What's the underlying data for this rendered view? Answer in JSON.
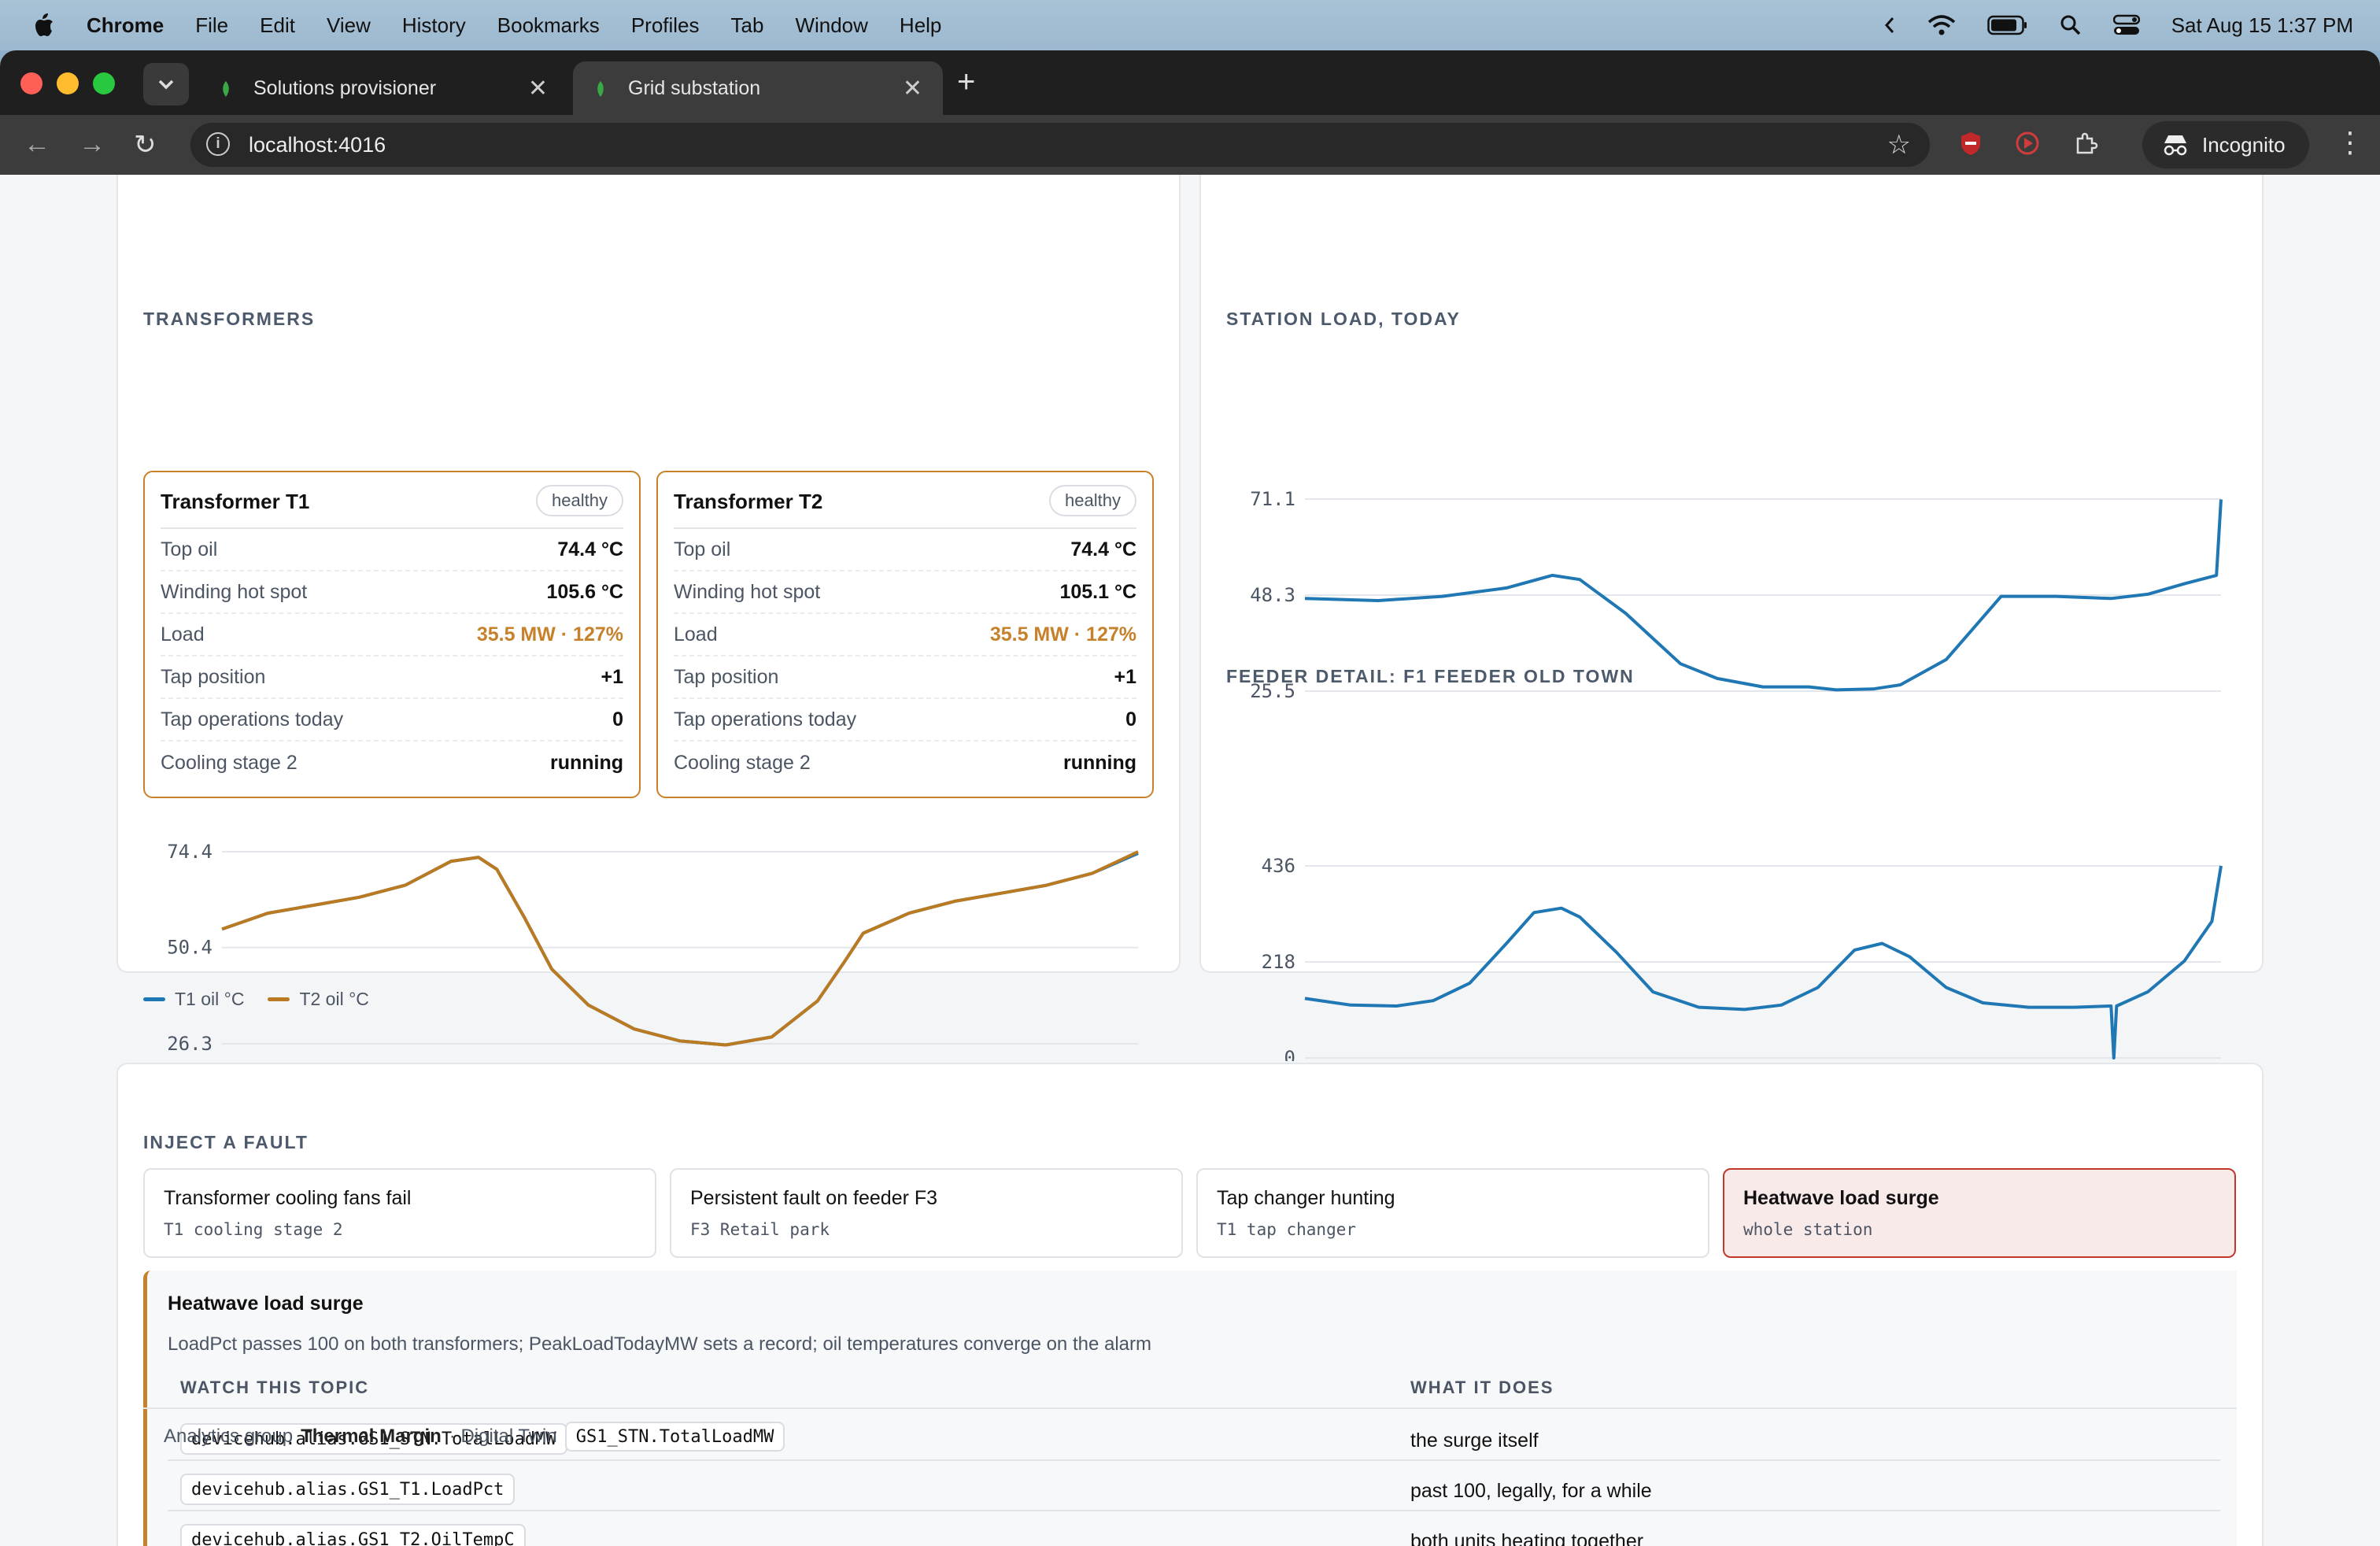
{
  "menubar": {
    "app": "Chrome",
    "items": [
      "File",
      "Edit",
      "View",
      "History",
      "Bookmarks",
      "Profiles",
      "Tab",
      "Window",
      "Help"
    ],
    "clock": "Sat Aug 15  1:37 PM"
  },
  "browser": {
    "tabs": [
      {
        "title": "Solutions provisioner",
        "active": false
      },
      {
        "title": "Grid substation",
        "active": true
      }
    ],
    "url": "localhost:4016",
    "profile": "Incognito"
  },
  "transformers": {
    "title": "TRANSFORMERS",
    "units": [
      {
        "name": "Transformer T1",
        "status": "healthy",
        "rows": [
          {
            "label": "Top oil",
            "value": "74.4 °C"
          },
          {
            "label": "Winding hot spot",
            "value": "105.6 °C"
          },
          {
            "label": "Load",
            "value": "35.5 MW · 127%",
            "warn": true
          },
          {
            "label": "Tap position",
            "value": "+1"
          },
          {
            "label": "Tap operations today",
            "value": "0"
          },
          {
            "label": "Cooling stage 2",
            "value": "running"
          }
        ]
      },
      {
        "name": "Transformer T2",
        "status": "healthy",
        "rows": [
          {
            "label": "Top oil",
            "value": "74.4 °C"
          },
          {
            "label": "Winding hot spot",
            "value": "105.1 °C"
          },
          {
            "label": "Load",
            "value": "35.5 MW · 127%",
            "warn": true
          },
          {
            "label": "Tap position",
            "value": "+1"
          },
          {
            "label": "Tap operations today",
            "value": "0"
          },
          {
            "label": "Cooling stage 2",
            "value": "running"
          }
        ]
      }
    ],
    "legend": [
      "T1 oil °C",
      "T2 oil °C"
    ]
  },
  "chart_data": [
    {
      "type": "line",
      "ylim": [
        26.3,
        74.4
      ],
      "yticks": [
        "74.4",
        "50.4",
        "26.3"
      ],
      "x": [
        0,
        5,
        10,
        15,
        20,
        25,
        28,
        30,
        33,
        36,
        40,
        45,
        50,
        55,
        60,
        65,
        68,
        70,
        75,
        80,
        85,
        90,
        95,
        100
      ],
      "series": [
        {
          "name": "T1 oil °C",
          "color": "#1f77b4",
          "values": [
            55,
            59,
            61,
            63,
            66,
            72,
            73,
            70,
            58,
            45,
            36,
            30,
            27,
            26,
            28,
            37,
            47,
            54,
            59,
            62,
            64,
            66,
            69,
            74
          ]
        },
        {
          "name": "T2 oil °C",
          "color": "#b97a22",
          "values": [
            55,
            59,
            61,
            63,
            66,
            72,
            73,
            70,
            58,
            45,
            36,
            30,
            27,
            26,
            28,
            37,
            47,
            54,
            59,
            62,
            64,
            66,
            69,
            74.4
          ]
        }
      ]
    },
    {
      "type": "line",
      "title": "STATION LOAD, TODAY",
      "ylim": [
        25.5,
        71.1
      ],
      "yticks": [
        "71.1",
        "48.3",
        "25.5"
      ],
      "x": [
        0,
        8,
        15,
        22,
        27,
        30,
        35,
        38,
        41,
        45,
        50,
        55,
        58,
        62,
        65,
        70,
        76,
        82,
        88,
        92,
        96,
        99.5,
        100
      ],
      "series": [
        {
          "name": "Station load",
          "color": "#1f77b4",
          "values": [
            47.5,
            47,
            48,
            50,
            53,
            52,
            44,
            38,
            32,
            28.5,
            26.5,
            26.5,
            25.8,
            26,
            27,
            33,
            48,
            48,
            47.5,
            48.5,
            51,
            53,
            71
          ]
        }
      ]
    },
    {
      "type": "line",
      "title": "FEEDER DETAIL: F1 FEEDER OLD TOWN",
      "ylim": [
        0,
        436
      ],
      "yticks": [
        "436",
        "218",
        "0"
      ],
      "x": [
        0,
        5,
        10,
        14,
        18,
        22,
        25,
        28,
        30,
        34,
        38,
        43,
        48,
        52,
        56,
        60,
        63,
        66,
        70,
        74,
        79,
        84,
        88,
        88.3,
        88.6,
        92,
        96,
        99,
        100
      ],
      "series": [
        {
          "name": "F1 Feeder Old Town",
          "color": "#1f77b4",
          "values": [
            135,
            120,
            118,
            130,
            170,
            260,
            330,
            340,
            320,
            240,
            150,
            115,
            110,
            120,
            160,
            245,
            260,
            230,
            160,
            125,
            115,
            115,
            118,
            0,
            118,
            150,
            220,
            310,
            436
          ]
        }
      ]
    }
  ],
  "station_load": {
    "title": "STATION LOAD, TODAY"
  },
  "feeder": {
    "title": "FEEDER DETAIL: F1 FEEDER OLD TOWN"
  },
  "inject": {
    "title": "INJECT A FAULT",
    "options": [
      {
        "title": "Transformer cooling fans fail",
        "sub": "T1 cooling stage 2",
        "selected": false
      },
      {
        "title": "Persistent fault on feeder F3",
        "sub": "F3 Retail park",
        "selected": false
      },
      {
        "title": "Tap changer hunting",
        "sub": "T1 tap changer",
        "selected": false
      },
      {
        "title": "Heatwave load surge",
        "sub": "whole station",
        "selected": true
      }
    ]
  },
  "detail": {
    "title": "Heatwave load surge",
    "description": "LoadPct passes 100 on both transformers; PeakLoadTodayMW sets a record; oil temperatures converge on the alarm",
    "col_topic": "WATCH THIS TOPIC",
    "col_what": "WHAT IT DOES",
    "rows": [
      {
        "topic": "devicehub.alias.GS1_STN.TotalLoadMW",
        "what": "the surge itself"
      },
      {
        "topic": "devicehub.alias.GS1_T1.LoadPct",
        "what": "past 100, legally, for a while"
      },
      {
        "topic": "devicehub.alias.GS1_T2.OilTempC",
        "what": "both units heating together"
      }
    ],
    "footer": {
      "prefix": "Analytics group",
      "group": "Thermal Margin",
      "sep": "· Digital Twin",
      "twin": "GS1_STN.TotalLoadMW"
    }
  }
}
